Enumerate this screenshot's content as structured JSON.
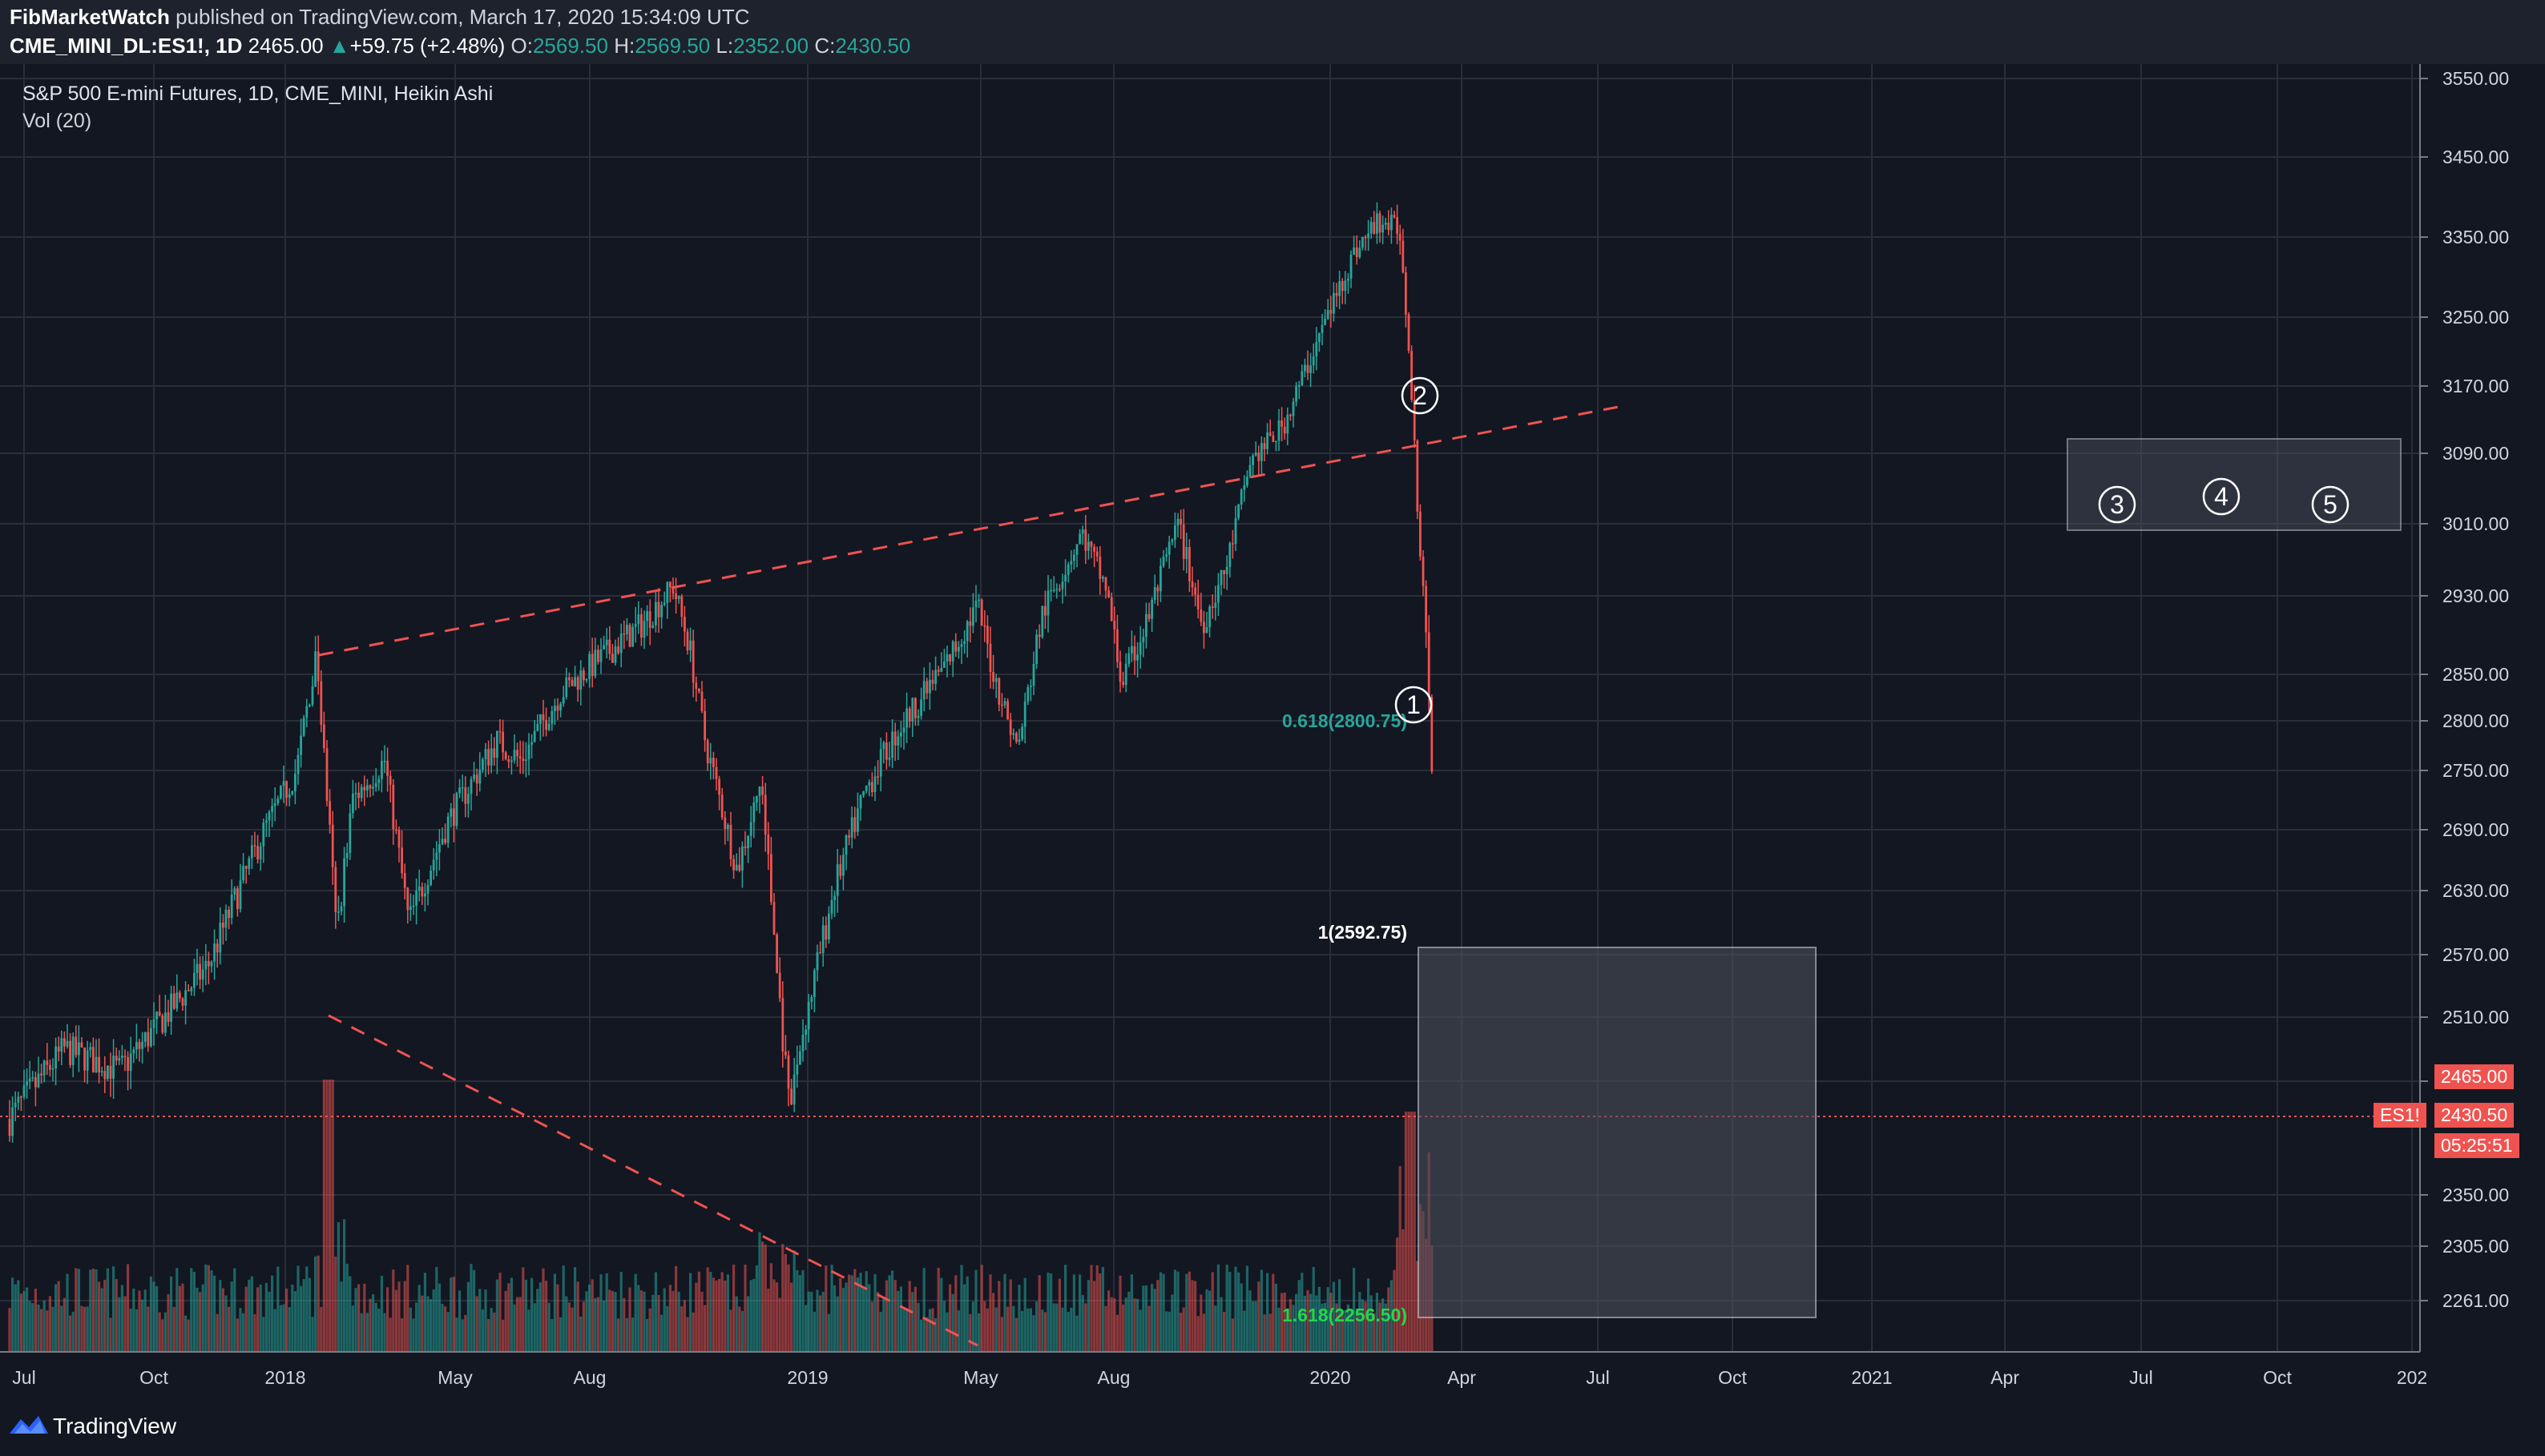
{
  "header": {
    "publisher": "FibMarketWatch",
    "published_text": "published on TradingView.com, March 17, 2020 15:34:09 UTC",
    "symbol": "CME_MINI_DL:ES1!, 1D",
    "last": "2465.00",
    "change": "+59.75 (+2.48%)",
    "o_label": "O:",
    "o_val": "2569.50",
    "h_label": "H:",
    "h_val": "2569.50",
    "l_label": "L:",
    "l_val": "2352.00",
    "c_label": "C:",
    "c_val": "2430.50"
  },
  "chart": {
    "title": "S&P 500 E-mini Futures, 1D, CME_MINI, Heikin Ashi",
    "volume_label": "Vol (20)",
    "price_ticks": [
      "3550.00",
      "3450.00",
      "3350.00",
      "3250.00",
      "3170.00",
      "3090.00",
      "3010.00",
      "2930.00",
      "2850.00",
      "2800.00",
      "2750.00",
      "2690.00",
      "2630.00",
      "2570.00",
      "2510.00",
      "2450.00",
      "2350.00",
      "2305.00",
      "2261.00"
    ],
    "time_ticks": [
      "Jul",
      "Oct",
      "2018",
      "May",
      "Aug",
      "2019",
      "May",
      "Aug",
      "2020",
      "Apr",
      "Jul",
      "Oct",
      "2021",
      "Apr",
      "Jul",
      "Oct",
      "202"
    ],
    "fib_labels": [
      "0.618(2800.75)",
      "1(2592.75)",
      "1.618(2256.50)"
    ],
    "wave_labels": [
      "1",
      "2",
      "3",
      "4",
      "5"
    ],
    "price_tags": {
      "last": "2465.00",
      "symbol": "ES1!",
      "close": "2430.50",
      "countdown": "05:25:51"
    }
  },
  "colors": {
    "bull": "#26a69a",
    "bear": "#ef5350",
    "bg": "#131722",
    "grid": "#2a2e39"
  },
  "footer": {
    "brand": "TradingView"
  }
}
